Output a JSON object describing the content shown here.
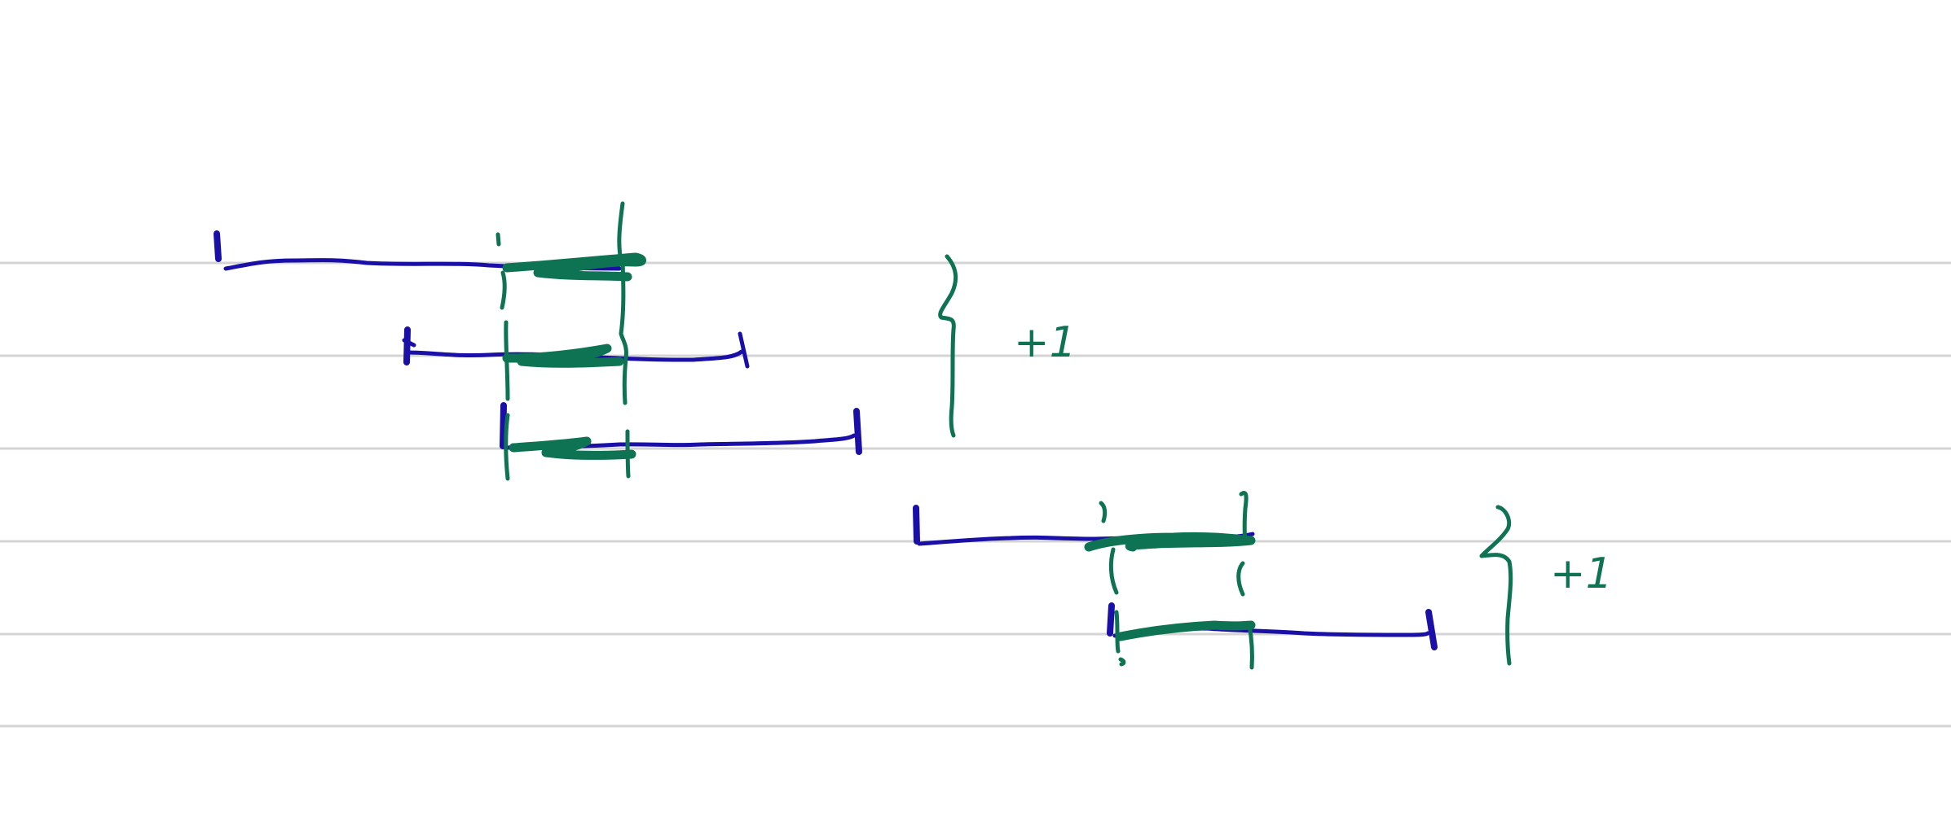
{
  "page": {
    "background": "#ffffff",
    "rule_color": "#d4d4d4",
    "ink_colors": {
      "blue": "#1a10a8",
      "green": "#0e7352"
    }
  },
  "annotations": {
    "upper": "+1",
    "lower": "+1"
  }
}
